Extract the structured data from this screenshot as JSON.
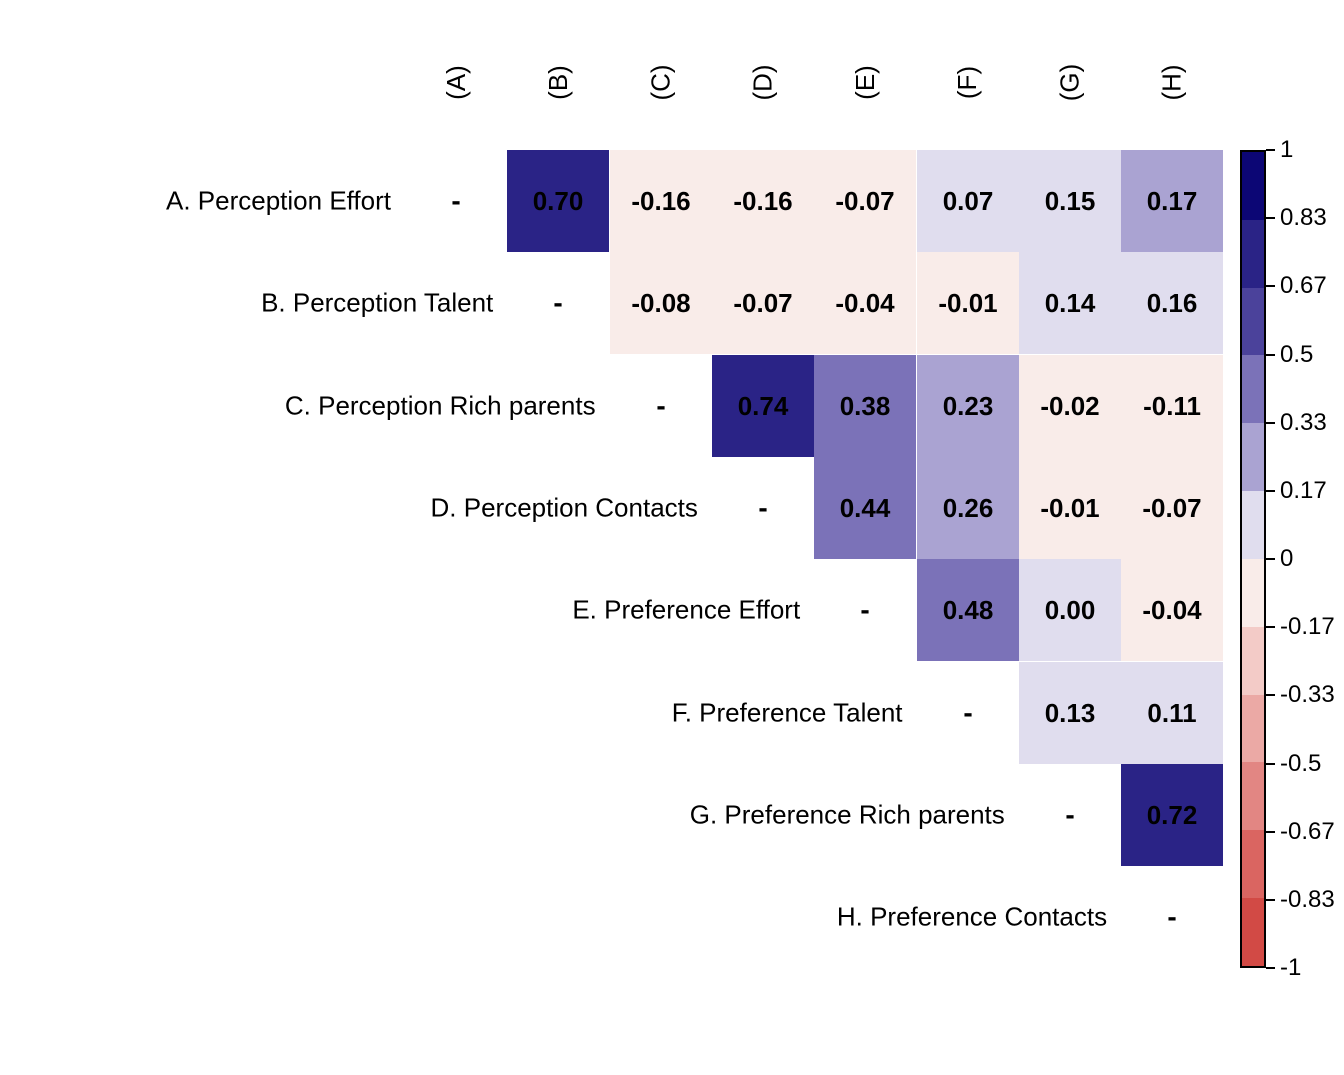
{
  "chart_data": {
    "type": "heatmap",
    "subtype": "correlation-matrix-upper-triangle",
    "title": "",
    "col_headers": [
      "(A)",
      "(B)",
      "(C)",
      "(D)",
      "(E)",
      "(F)",
      "(G)",
      "(H)"
    ],
    "row_labels": [
      "A. Perception Effort",
      "B. Perception Talent",
      "C. Perception Rich parents",
      "D. Perception Contacts",
      "E. Preference Effort",
      "F. Preference Talent",
      "G. Preference Rich parents",
      "H. Preference Contacts"
    ],
    "diagonal_marker": "-",
    "matrix": [
      [
        "-",
        "0.70",
        "-0.16",
        "-0.16",
        "-0.07",
        "0.07",
        "0.15",
        "0.17"
      ],
      [
        null,
        "-",
        "-0.08",
        "-0.07",
        "-0.04",
        "-0.01",
        "0.14",
        "0.16"
      ],
      [
        null,
        null,
        "-",
        "0.74",
        "0.38",
        "0.23",
        "-0.02",
        "-0.11"
      ],
      [
        null,
        null,
        null,
        "-",
        "0.44",
        "0.26",
        "-0.01",
        "-0.07"
      ],
      [
        null,
        null,
        null,
        null,
        "-",
        "0.48",
        "0.00",
        "-0.04"
      ],
      [
        null,
        null,
        null,
        null,
        null,
        "-",
        "0.13",
        "0.11"
      ],
      [
        null,
        null,
        null,
        null,
        null,
        null,
        "-",
        "0.72"
      ],
      [
        null,
        null,
        null,
        null,
        null,
        null,
        null,
        "-"
      ]
    ],
    "colorbar": {
      "min": -1,
      "max": 1,
      "tick_labels": [
        "1",
        "0.83",
        "0.67",
        "0.5",
        "0.33",
        "0.17",
        "0",
        "-0.17",
        "-0.33",
        "-0.5",
        "-0.67",
        "-0.83",
        "-1"
      ],
      "band_colors_bottom_to_top": [
        "#d24a45",
        "#da6561",
        "#e28683",
        "#eba9a5",
        "#f3cbc7",
        "#f9ece9",
        "#e0ddee",
        "#aaa3d2",
        "#7b72b8",
        "#4b429b",
        "#2a2386",
        "#0c0675"
      ]
    },
    "legend_position": "right",
    "grid": false
  }
}
